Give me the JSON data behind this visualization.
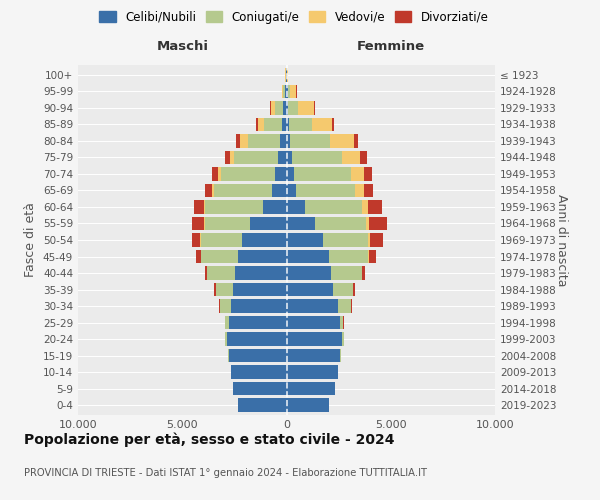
{
  "age_groups": [
    "0-4",
    "5-9",
    "10-14",
    "15-19",
    "20-24",
    "25-29",
    "30-34",
    "35-39",
    "40-44",
    "45-49",
    "50-54",
    "55-59",
    "60-64",
    "65-69",
    "70-74",
    "75-79",
    "80-84",
    "85-89",
    "90-94",
    "95-99",
    "100+"
  ],
  "birth_years": [
    "2019-2023",
    "2014-2018",
    "2009-2013",
    "2004-2008",
    "1999-2003",
    "1994-1998",
    "1989-1993",
    "1984-1988",
    "1979-1983",
    "1974-1978",
    "1969-1973",
    "1964-1968",
    "1959-1963",
    "1954-1958",
    "1949-1953",
    "1944-1948",
    "1939-1943",
    "1934-1938",
    "1929-1933",
    "1924-1928",
    "≤ 1923"
  ],
  "males_celibi": [
    2350,
    2550,
    2650,
    2750,
    2850,
    2750,
    2650,
    2550,
    2450,
    2350,
    2150,
    1750,
    1150,
    700,
    550,
    430,
    320,
    230,
    160,
    70,
    25
  ],
  "males_coniugati": [
    0,
    0,
    0,
    40,
    90,
    180,
    550,
    850,
    1350,
    1750,
    1950,
    2150,
    2750,
    2800,
    2600,
    2100,
    1550,
    850,
    380,
    90,
    15
  ],
  "males_vedovi": [
    0,
    0,
    0,
    0,
    0,
    0,
    3,
    4,
    8,
    15,
    25,
    45,
    70,
    90,
    130,
    180,
    370,
    280,
    220,
    50,
    8
  ],
  "males_divorziati": [
    0,
    0,
    0,
    8,
    8,
    18,
    45,
    90,
    90,
    230,
    420,
    570,
    470,
    320,
    270,
    230,
    180,
    90,
    55,
    18,
    4
  ],
  "females_nubili": [
    2050,
    2350,
    2450,
    2550,
    2650,
    2550,
    2450,
    2250,
    2150,
    2050,
    1750,
    1350,
    870,
    470,
    370,
    280,
    180,
    140,
    90,
    55,
    25
  ],
  "females_coniugate": [
    0,
    0,
    0,
    40,
    90,
    180,
    650,
    950,
    1450,
    1850,
    2150,
    2450,
    2750,
    2800,
    2700,
    2400,
    1900,
    1100,
    460,
    130,
    15
  ],
  "females_vedove": [
    0,
    0,
    0,
    0,
    0,
    0,
    4,
    8,
    18,
    55,
    90,
    140,
    280,
    470,
    650,
    850,
    1150,
    950,
    750,
    280,
    25
  ],
  "females_divorziate": [
    0,
    0,
    0,
    8,
    8,
    18,
    45,
    90,
    140,
    320,
    660,
    870,
    660,
    420,
    370,
    320,
    180,
    110,
    75,
    25,
    4
  ],
  "colors_celibi": "#3a6fa8",
  "colors_coniugati": "#b5c98e",
  "colors_vedovi": "#f5c96e",
  "colors_divorziati": "#c0392b",
  "xlim": 10000,
  "title": "Popolazione per età, sesso e stato civile - 2024",
  "subtitle": "PROVINCIA DI TRIESTE - Dati ISTAT 1° gennaio 2024 - Elaborazione TUTTITALIA.IT",
  "ylabel_left": "Fasce di età",
  "ylabel_right": "Anni di nascita",
  "label_maschi": "Maschi",
  "label_femmine": "Femmine",
  "legend_labels": [
    "Celibi/Nubili",
    "Coniugati/e",
    "Vedovi/e",
    "Divorziati/e"
  ],
  "bg_color": "#f5f5f5",
  "plot_bg_color": "#ebebeb"
}
